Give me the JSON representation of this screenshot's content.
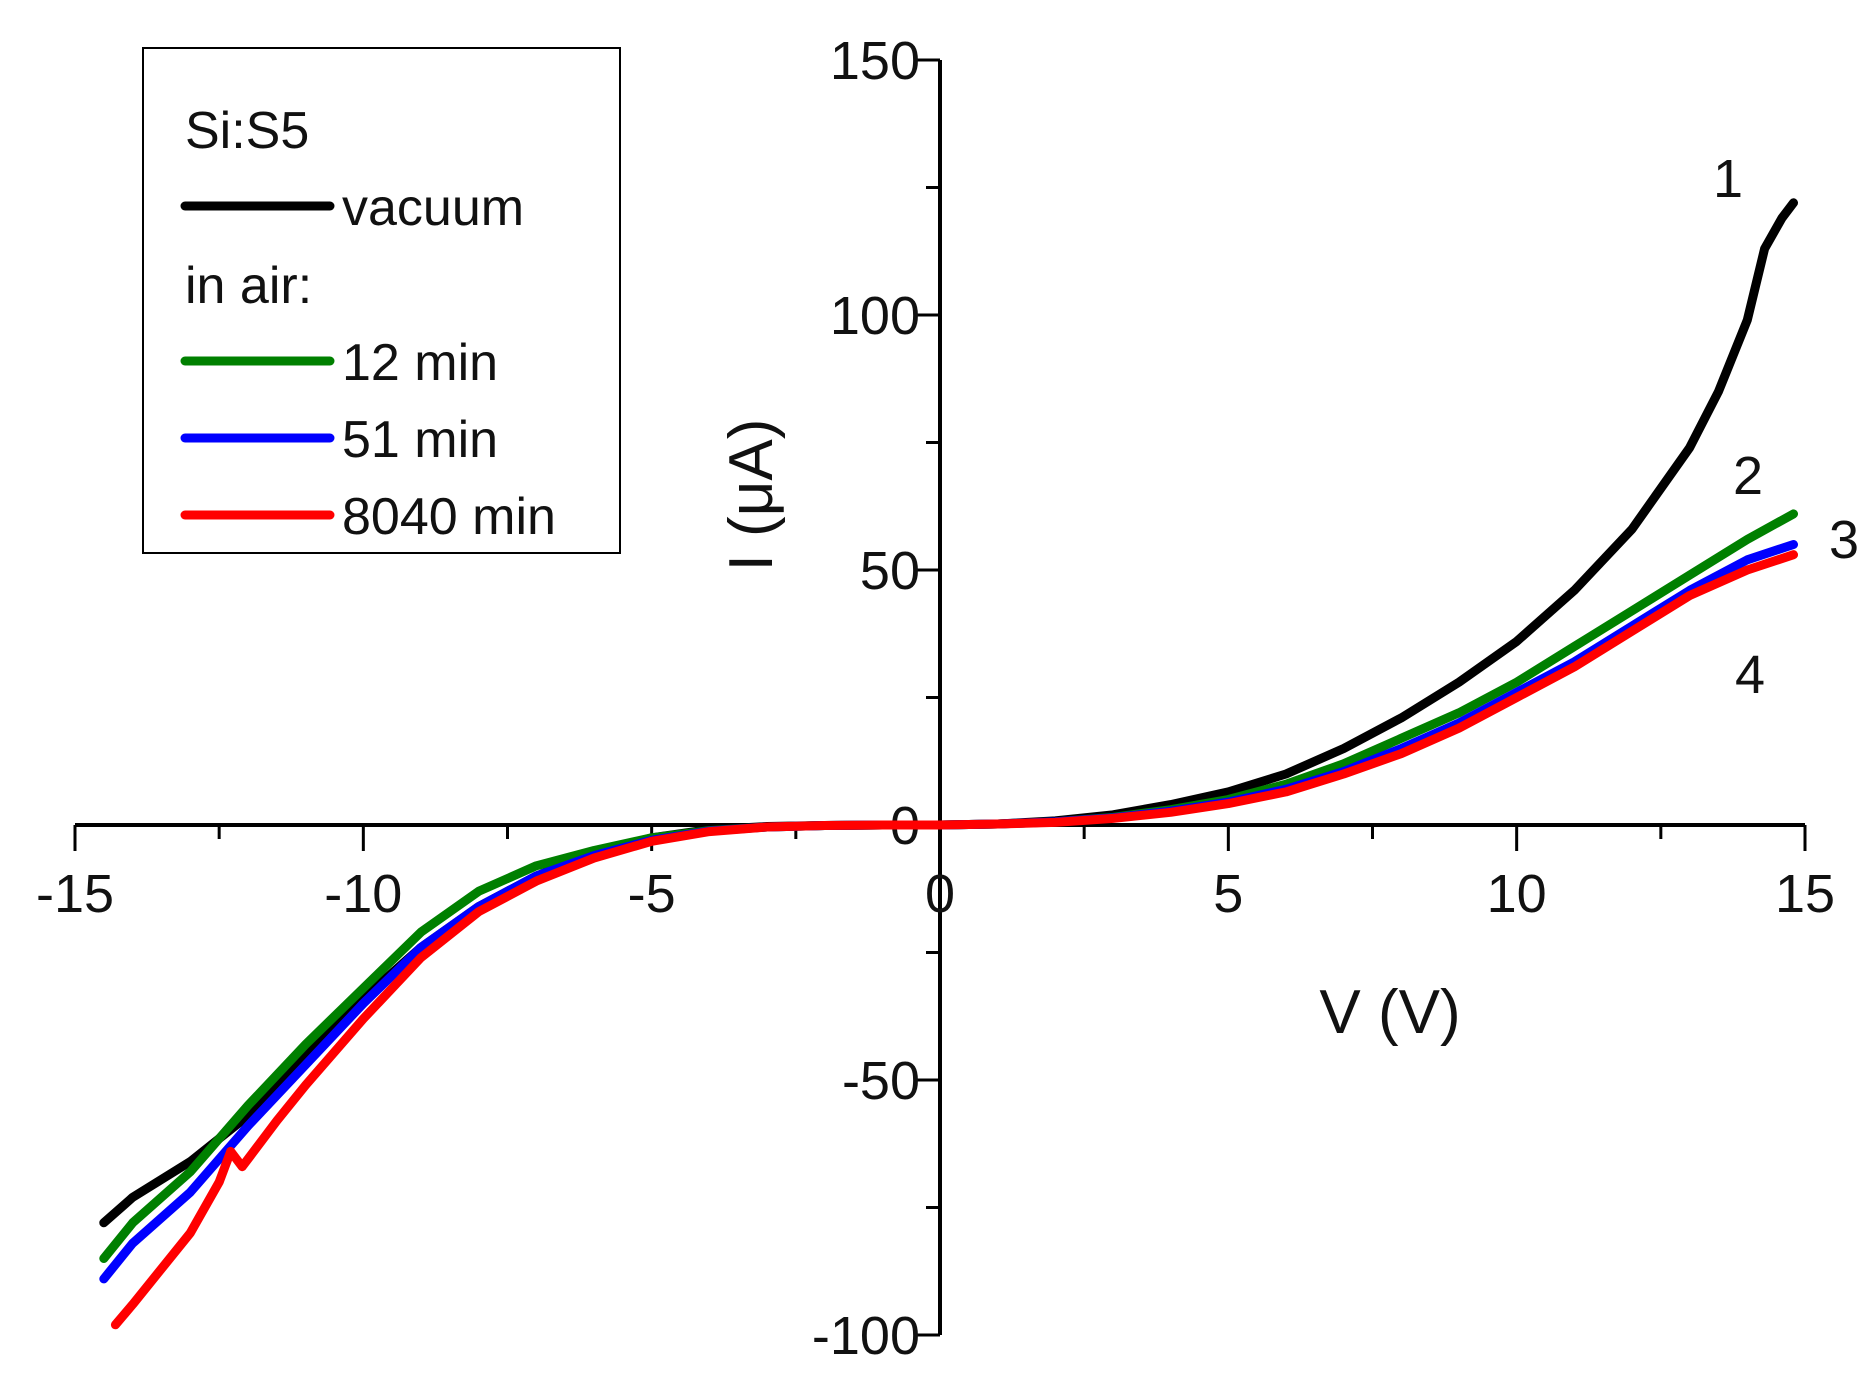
{
  "chart_data": {
    "type": "line",
    "title": "",
    "xlabel": "V (V)",
    "ylabel": "I (μA)",
    "xlim": [
      -15,
      15
    ],
    "ylim": [
      -100,
      150
    ],
    "x_ticks": [
      -15,
      -10,
      -5,
      0,
      5,
      10,
      15
    ],
    "y_ticks": [
      -100,
      -50,
      0,
      50,
      100,
      150
    ],
    "x_tick_labels": [
      "-15",
      "-10",
      "-5",
      "0",
      "5",
      "10",
      "15"
    ],
    "y_tick_labels": [
      "-100",
      "-50",
      "0",
      "50",
      "100",
      "150"
    ],
    "grid": false,
    "legend": {
      "position": "top-left",
      "title": "Si:S5",
      "group_label": "in air:",
      "entries": [
        "vacuum",
        "12 min",
        "51 min",
        "8040 min"
      ]
    },
    "curve_labels": [
      {
        "text": "1",
        "series": "vacuum"
      },
      {
        "text": "2",
        "series": "12 min"
      },
      {
        "text": "3",
        "series": "51 min"
      },
      {
        "text": "4",
        "series": "8040 min"
      }
    ],
    "series": [
      {
        "name": "vacuum",
        "color": "#000000",
        "x": [
          -14.5,
          -14,
          -13,
          -12,
          -11,
          -10,
          -9,
          -8,
          -7,
          -6,
          -5,
          -4,
          -3,
          -2,
          -1,
          0,
          1,
          2,
          3,
          4,
          5,
          6,
          7,
          8,
          9,
          10,
          11,
          12,
          13,
          13.5,
          14,
          14.3,
          14.6,
          14.8
        ],
        "y": [
          -78,
          -73,
          -66,
          -57,
          -45,
          -34,
          -24,
          -16,
          -10,
          -5.5,
          -2.5,
          -0.9,
          -0.3,
          -0.1,
          0,
          0,
          0.2,
          0.8,
          2,
          4,
          6.5,
          10,
          15,
          21,
          28,
          36,
          46,
          58,
          74,
          85,
          99,
          113,
          119,
          122
        ]
      },
      {
        "name": "12 min",
        "color": "#008000",
        "x": [
          -14.5,
          -14,
          -13,
          -12,
          -11,
          -10,
          -9,
          -8,
          -7,
          -6,
          -5,
          -4,
          -3,
          -2,
          -1,
          0,
          1,
          2,
          3,
          4,
          5,
          6,
          7,
          8,
          9,
          10,
          11,
          12,
          13,
          14,
          14.8
        ],
        "y": [
          -85,
          -78,
          -68,
          -55,
          -43,
          -32,
          -21,
          -13,
          -8,
          -5,
          -2.5,
          -1.1,
          -0.4,
          -0.1,
          0,
          0,
          0.2,
          0.6,
          1.5,
          3,
          5,
          8,
          12,
          17,
          22,
          28,
          35,
          42,
          49,
          56,
          61
        ]
      },
      {
        "name": "51 min",
        "color": "#0000ff",
        "x": [
          -14.5,
          -14,
          -13,
          -12,
          -11,
          -10,
          -9,
          -8,
          -7,
          -6,
          -5,
          -4,
          -3,
          -2,
          -1,
          0,
          1,
          2,
          3,
          4,
          5,
          6,
          7,
          8,
          9,
          10,
          11,
          12,
          13,
          14,
          14.8
        ],
        "y": [
          -89,
          -82,
          -72,
          -59,
          -47,
          -35,
          -24,
          -16,
          -10,
          -6,
          -3,
          -1.2,
          -0.4,
          -0.1,
          0,
          0,
          0.2,
          0.6,
          1.4,
          2.7,
          4.5,
          7,
          10.5,
          15,
          20,
          26,
          32,
          39,
          46,
          52,
          55
        ]
      },
      {
        "name": "8040 min",
        "color": "#ff0000",
        "x": [
          -14.3,
          -14,
          -13.5,
          -13,
          -12.5,
          -12.3,
          -12.1,
          -11.5,
          -11,
          -10,
          -9,
          -8,
          -7,
          -6,
          -5,
          -4,
          -3,
          -2,
          -1,
          0,
          1,
          2,
          3,
          4,
          5,
          6,
          7,
          8,
          9,
          10,
          11,
          12,
          13,
          14,
          14.8
        ],
        "y": [
          -98,
          -94,
          -87,
          -80,
          -70,
          -64,
          -67,
          -58,
          -51,
          -38,
          -26,
          -17,
          -11,
          -6.5,
          -3.2,
          -1.3,
          -0.4,
          -0.1,
          0,
          0,
          0.2,
          0.5,
          1.3,
          2.5,
          4.2,
          6.5,
          10,
          14,
          19,
          25,
          31,
          38,
          45,
          50,
          53
        ]
      }
    ]
  }
}
